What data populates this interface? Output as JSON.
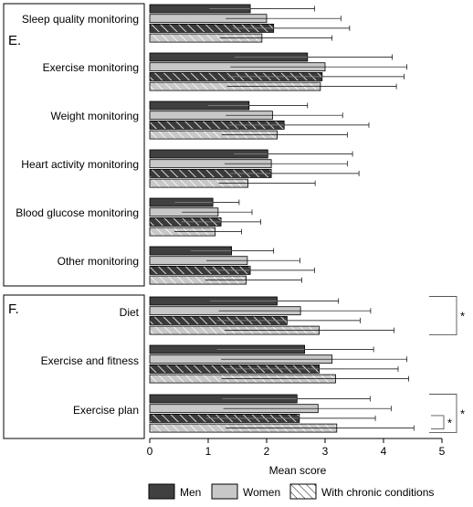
{
  "chart_data": {
    "type": "bar",
    "orientation": "horizontal",
    "xlabel": "Mean score",
    "xlim": [
      0,
      5
    ],
    "xticks": [
      "0",
      "1",
      "2",
      "3",
      "4",
      "5"
    ],
    "grid": false,
    "legend_position": "bottom",
    "panels": [
      {
        "label": "E.",
        "categories": [
          "Sleep quality monitoring",
          "Exercise monitoring",
          "Weight monitoring",
          "Heart activity monitoring",
          "Blood glucose monitoring",
          "Other monitoring"
        ],
        "series": [
          {
            "name": "Men",
            "values": [
              1.72,
              2.7,
              1.7,
              2.02,
              1.08,
              1.4
            ],
            "error": [
              1.1,
              1.45,
              1.0,
              1.45,
              0.45,
              0.72
            ],
            "inner": [
              0.7,
              1.25,
              0.7,
              0.58,
              0.65,
              0.7
            ]
          },
          {
            "name": "Women",
            "values": [
              2.0,
              3.0,
              2.1,
              2.08,
              1.17,
              1.67
            ],
            "error": [
              1.27,
              1.4,
              1.2,
              1.3,
              0.58,
              0.9
            ],
            "inner": [
              0.7,
              1.62,
              0.8,
              0.8,
              0.62,
              0.7
            ]
          },
          {
            "name": "With chronic conditions",
            "values": [
              2.12,
              2.95,
              2.3,
              2.08,
              1.22,
              1.72
            ],
            "error": [
              1.3,
              1.4,
              1.45,
              1.5,
              0.68,
              1.1
            ],
            "inner": [
              0.7,
              1.6,
              0.95,
              0.7,
              0.68,
              0.75
            ]
          },
          {
            "name": "",
            "values": [
              1.92,
              2.92,
              2.18,
              1.68,
              1.12,
              1.65
            ],
            "error": [
              1.2,
              1.3,
              1.2,
              1.15,
              0.45,
              0.95
            ],
            "inner": [
              0.72,
              1.6,
              0.95,
              0.5,
              0.7,
              0.7
            ]
          }
        ],
        "significance": []
      },
      {
        "label": "F.",
        "categories": [
          "Diet",
          "Exercise and fitness",
          "Exercise plan"
        ],
        "series": [
          {
            "name": "Men",
            "values": [
              2.18,
              2.65,
              2.52
            ],
            "error": [
              1.05,
              1.18,
              1.25
            ],
            "inner": [
              1.15,
              1.5,
              1.28
            ]
          },
          {
            "name": "Women",
            "values": [
              2.58,
              3.12,
              2.88
            ],
            "error": [
              1.2,
              1.28,
              1.25
            ],
            "inner": [
              1.4,
              1.9,
              1.62
            ]
          },
          {
            "name": "With chronic conditions",
            "values": [
              2.35,
              2.9,
              2.56
            ],
            "error": [
              1.25,
              1.35,
              1.3
            ],
            "inner": [
              1.2,
              1.6,
              1.6
            ]
          },
          {
            "name": "",
            "values": [
              2.9,
              3.18,
              3.2
            ],
            "error": [
              1.28,
              1.25,
              1.32
            ],
            "inner": [
              1.62,
              1.95,
              1.9
            ]
          }
        ],
        "significance": [
          {
            "from_category": 0,
            "from_series": 0,
            "to_category": 0,
            "to_series": 3,
            "mark": "*",
            "tier": 1
          },
          {
            "from_category": 2,
            "from_series": 0,
            "to_category": 2,
            "to_series": 3,
            "mark": "*",
            "tier": 1
          },
          {
            "from_category": 2,
            "from_series": 2,
            "to_category": 2,
            "to_series": 3,
            "mark": "*",
            "tier": 0
          }
        ]
      }
    ],
    "series_styles": [
      {
        "fill": "#404040",
        "hatch": false
      },
      {
        "fill": "#c8c8c8",
        "hatch": false
      },
      {
        "fill": "#404040",
        "hatch": true
      },
      {
        "fill": "#c8c8c8",
        "hatch": true
      }
    ],
    "legend": [
      {
        "label": "Men",
        "fill": "#404040",
        "hatch": false
      },
      {
        "label": "Women",
        "fill": "#c8c8c8",
        "hatch": false
      },
      {
        "label": "With chronic conditions",
        "fill": "#ffffff",
        "hatch": true
      }
    ]
  }
}
